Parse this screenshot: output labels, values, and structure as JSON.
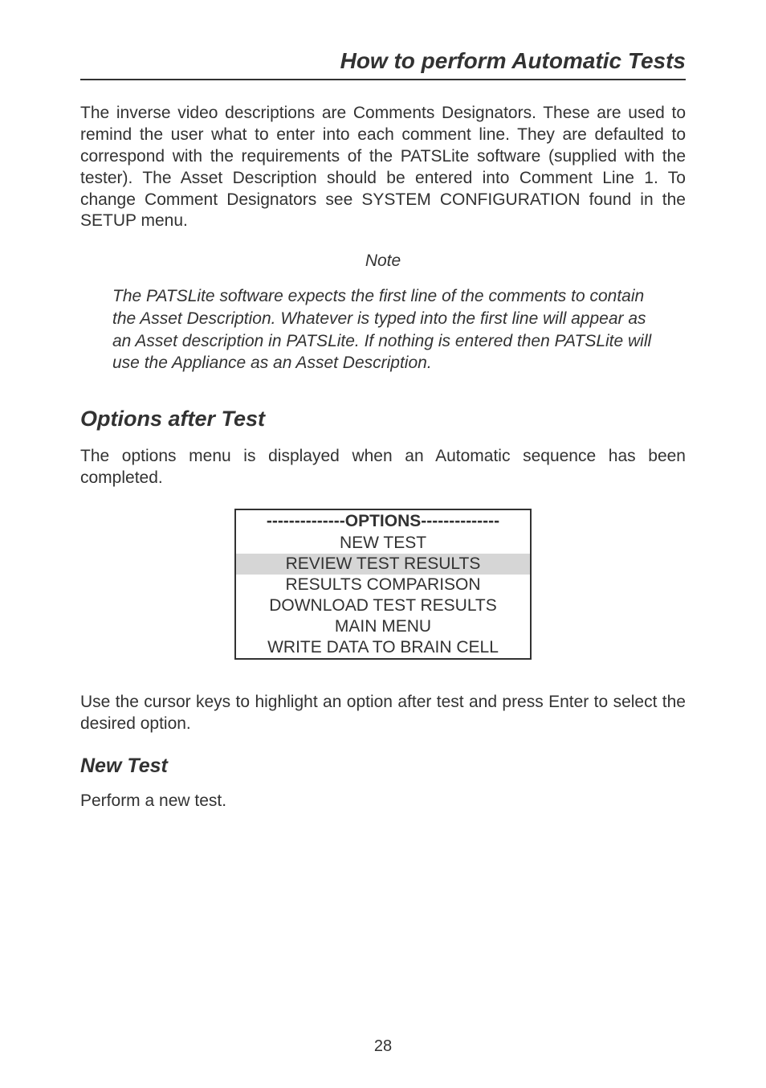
{
  "header": {
    "title": "How to perform Automatic Tests"
  },
  "paragraphs": {
    "p1": "The inverse video descriptions are Comments Designators. These are used to remind the user what to enter into each comment line. They are defaulted to correspond with the requirements of the PATSLite software (supplied with the tester). The Asset Description should be entered into Comment Line 1. To change Comment Designators see SYSTEM CONFIGURATION found in the SETUP menu.",
    "note_label": "Note",
    "note_text": "The PATSLite software expects the first line of the comments to contain the Asset Description. Whatever is typed into the first line will appear as an Asset description in PATSLite. If nothing is entered then PATSLite will use the Appliance as an Asset Description.",
    "p2": "The options menu is displayed when an Automatic sequence has been completed.",
    "p3": "Use the cursor keys to highlight an option after test and press Enter to select the desired option.",
    "p4": "Perform a new test."
  },
  "sections": {
    "options_after_test": "Options after Test",
    "new_test": "New Test"
  },
  "menu": {
    "header": "--------------OPTIONS--------------",
    "rows": [
      "NEW TEST",
      "REVIEW TEST RESULTS",
      "RESULTS COMPARISON",
      "DOWNLOAD TEST RESULTS",
      "MAIN MENU",
      "WRITE DATA TO BRAIN CELL"
    ],
    "selected_index": 1,
    "selected_bg": "#d6d6d6",
    "border_color": "#323232"
  },
  "page_number": "28",
  "colors": {
    "text": "#323232",
    "background": "#ffffff"
  }
}
